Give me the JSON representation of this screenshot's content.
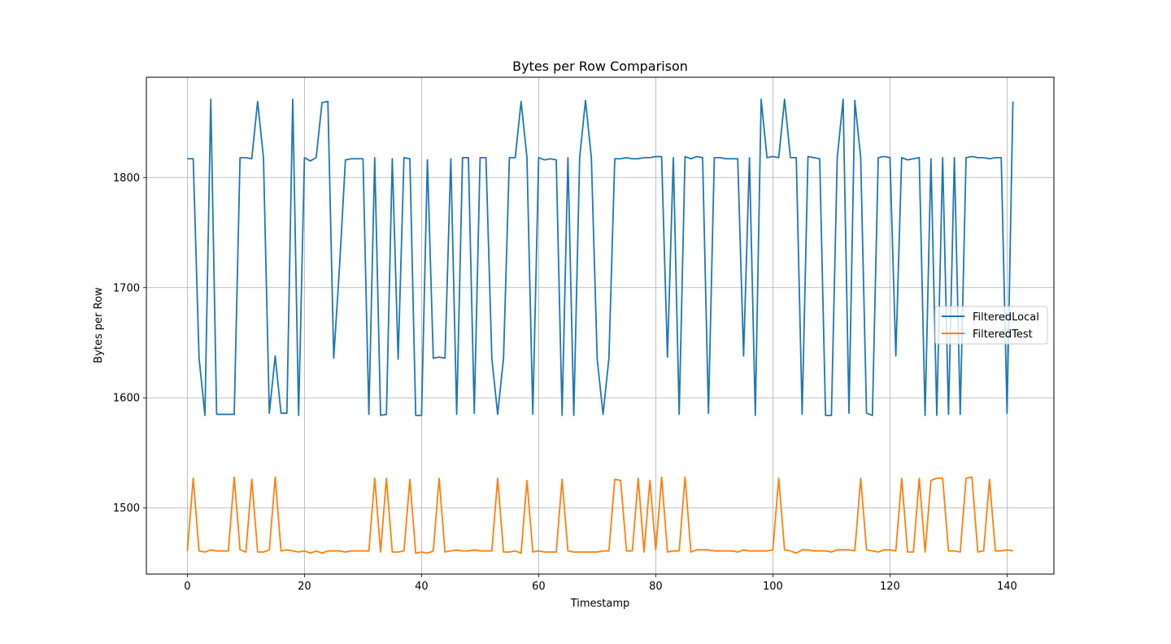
{
  "chart_data": {
    "type": "line",
    "title": "Bytes per Row Comparison",
    "xlabel": "Timestamp",
    "ylabel": "Bytes per Row",
    "xlim": [
      -7,
      148
    ],
    "ylim": [
      1440,
      1891
    ],
    "xticks": [
      0,
      20,
      40,
      60,
      80,
      100,
      120,
      140
    ],
    "yticks": [
      1500,
      1600,
      1700,
      1800
    ],
    "grid": true,
    "legend_position": "center-right",
    "series": [
      {
        "name": "FilteredLocal",
        "color": "#1f77b4",
        "x_start": 0,
        "values": [
          1817,
          1817,
          1636,
          1584,
          1871,
          1585,
          1585,
          1585,
          1585,
          1818,
          1818,
          1817,
          1869,
          1818,
          1586,
          1638,
          1586,
          1586,
          1871,
          1584,
          1818,
          1815,
          1818,
          1868,
          1869,
          1636,
          1720,
          1816,
          1817,
          1817,
          1817,
          1585,
          1818,
          1584,
          1585,
          1817,
          1635,
          1818,
          1817,
          1584,
          1584,
          1816,
          1636,
          1637,
          1636,
          1817,
          1585,
          1818,
          1818,
          1586,
          1818,
          1818,
          1636,
          1585,
          1636,
          1818,
          1818,
          1869,
          1818,
          1585,
          1818,
          1816,
          1817,
          1816,
          1584,
          1818,
          1584,
          1818,
          1870,
          1818,
          1635,
          1585,
          1636,
          1817,
          1817,
          1818,
          1817,
          1817,
          1818,
          1818,
          1819,
          1819,
          1637,
          1818,
          1585,
          1819,
          1817,
          1819,
          1818,
          1586,
          1818,
          1818,
          1817,
          1817,
          1817,
          1638,
          1818,
          1584,
          1871,
          1818,
          1819,
          1818,
          1871,
          1818,
          1818,
          1585,
          1819,
          1818,
          1817,
          1584,
          1584,
          1818,
          1871,
          1586,
          1870,
          1818,
          1586,
          1584,
          1818,
          1819,
          1818,
          1638,
          1818,
          1816,
          1817,
          1818,
          1584,
          1817,
          1584,
          1818,
          1585,
          1818,
          1585,
          1818,
          1819,
          1818,
          1818,
          1817,
          1818,
          1818,
          1586,
          1869
        ]
      },
      {
        "name": "FilteredTest",
        "color": "#ff7f0e",
        "x_start": 0,
        "values": [
          1461,
          1527,
          1461,
          1460,
          1462,
          1461,
          1461,
          1461,
          1528,
          1462,
          1460,
          1526,
          1460,
          1460,
          1462,
          1528,
          1461,
          1462,
          1461,
          1460,
          1461,
          1459,
          1461,
          1459,
          1461,
          1461,
          1461,
          1460,
          1461,
          1461,
          1461,
          1461,
          1527,
          1460,
          1527,
          1460,
          1460,
          1461,
          1526,
          1459,
          1460,
          1459,
          1461,
          1527,
          1460,
          1461,
          1462,
          1461,
          1461,
          1462,
          1461,
          1461,
          1461,
          1527,
          1460,
          1460,
          1461,
          1459,
          1525,
          1460,
          1461,
          1460,
          1460,
          1460,
          1526,
          1461,
          1460,
          1460,
          1460,
          1460,
          1460,
          1461,
          1461,
          1526,
          1525,
          1461,
          1461,
          1527,
          1460,
          1525,
          1462,
          1528,
          1460,
          1461,
          1461,
          1528,
          1460,
          1462,
          1462,
          1462,
          1461,
          1461,
          1461,
          1461,
          1460,
          1462,
          1461,
          1461,
          1461,
          1461,
          1462,
          1527,
          1462,
          1461,
          1459,
          1462,
          1462,
          1461,
          1461,
          1461,
          1460,
          1462,
          1462,
          1462,
          1461,
          1527,
          1462,
          1461,
          1460,
          1462,
          1462,
          1461,
          1527,
          1460,
          1460,
          1527,
          1460,
          1525,
          1527,
          1527,
          1461,
          1461,
          1460,
          1527,
          1528,
          1460,
          1461,
          1526,
          1461,
          1461,
          1462,
          1461
        ]
      }
    ]
  }
}
